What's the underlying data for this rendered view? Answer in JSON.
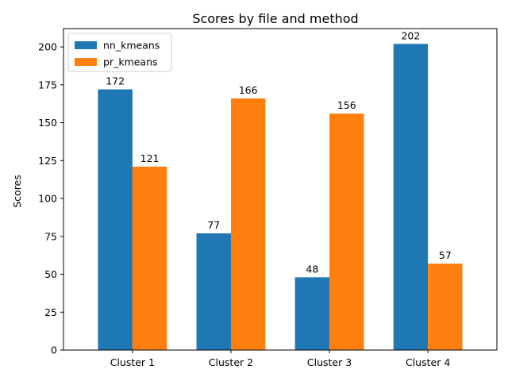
{
  "chart_data": {
    "type": "bar",
    "title": "Scores by file and method",
    "xlabel": "",
    "ylabel": "Scores",
    "categories": [
      "Cluster 1",
      "Cluster 2",
      "Cluster 3",
      "Cluster 4"
    ],
    "series": [
      {
        "name": "nn_kmeans",
        "values": [
          172,
          77,
          48,
          202
        ],
        "color": "#1f77b4"
      },
      {
        "name": "pr_kmeans",
        "values": [
          121,
          166,
          156,
          57
        ],
        "color": "#ff7f0e"
      }
    ],
    "ylim": [
      0,
      212.1
    ],
    "yticks": [
      0,
      25,
      50,
      75,
      100,
      125,
      150,
      175,
      200
    ],
    "grid": false,
    "legend_position": "top-left"
  }
}
